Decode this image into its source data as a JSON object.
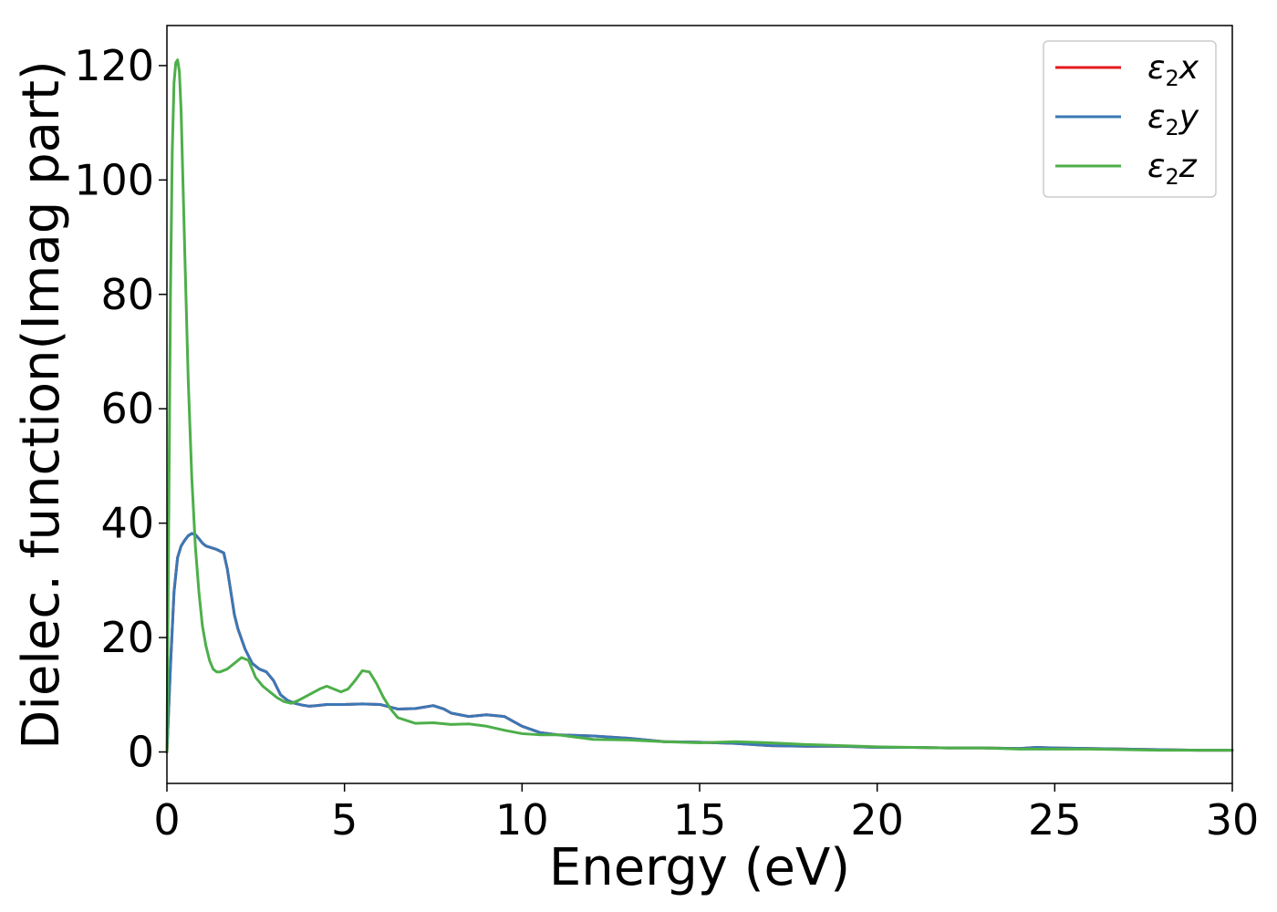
{
  "chart_data": {
    "type": "line",
    "xlabel": "Energy (eV)",
    "ylabel": "Dielec. function(Imag part)",
    "xlim": [
      0,
      30
    ],
    "ylim": [
      -5.5,
      127
    ],
    "xticks": [
      0,
      5,
      10,
      15,
      20,
      25,
      30
    ],
    "yticks": [
      0,
      20,
      40,
      60,
      80,
      100,
      120
    ],
    "grid": false,
    "legend_position": "top-right",
    "series": [
      {
        "name": "ε2x",
        "legend_base": "ε",
        "legend_sub": "2",
        "legend_suffix": "x",
        "color": "#e41a1c",
        "x": [
          0,
          0.1,
          0.2,
          0.3,
          0.4,
          0.5,
          0.6,
          0.7,
          0.8,
          0.9,
          1.0,
          1.1,
          1.2,
          1.4,
          1.6,
          1.7,
          1.8,
          1.9,
          2.0,
          2.2,
          2.4,
          2.6,
          2.8,
          3.0,
          3.2,
          3.4,
          3.6,
          3.8,
          4.0,
          4.2,
          4.5,
          5.0,
          5.5,
          6.0,
          6.5,
          7.0,
          7.2,
          7.5,
          7.8,
          8.0,
          8.5,
          9.0,
          9.5,
          10.0,
          10.5,
          11.0,
          12.0,
          13.0,
          14.0,
          15.0,
          16.0,
          17.0,
          18.0,
          19.0,
          20.0,
          21.0,
          22.0,
          23.0,
          24.0,
          24.5,
          25.0,
          26.0,
          27.0,
          28.0,
          29.0,
          30.0
        ],
        "y": [
          0,
          15,
          28,
          34,
          36,
          37,
          37.8,
          38.2,
          38,
          37.3,
          36.5,
          36,
          35.8,
          35.4,
          34.8,
          32,
          28,
          24,
          21.5,
          18,
          15.5,
          14.5,
          14,
          12.5,
          10,
          9,
          8.5,
          8.2,
          8,
          8.1,
          8.3,
          8.3,
          8.4,
          8.3,
          7.5,
          7.6,
          7.8,
          8.1,
          7.5,
          6.8,
          6.2,
          6.5,
          6.2,
          4.5,
          3.4,
          3,
          2.8,
          2.4,
          1.8,
          1.7,
          1.5,
          1.1,
          1.0,
          1.0,
          0.8,
          0.8,
          0.7,
          0.7,
          0.6,
          0.8,
          0.7,
          0.6,
          0.5,
          0.4,
          0.3,
          0.3
        ]
      },
      {
        "name": "ε2y",
        "legend_base": "ε",
        "legend_sub": "2",
        "legend_suffix": "y",
        "color": "#3a78b5",
        "x": [
          0,
          0.1,
          0.2,
          0.3,
          0.4,
          0.5,
          0.6,
          0.7,
          0.8,
          0.9,
          1.0,
          1.1,
          1.2,
          1.4,
          1.6,
          1.7,
          1.8,
          1.9,
          2.0,
          2.2,
          2.4,
          2.6,
          2.8,
          3.0,
          3.2,
          3.4,
          3.6,
          3.8,
          4.0,
          4.2,
          4.5,
          5.0,
          5.5,
          6.0,
          6.5,
          7.0,
          7.2,
          7.5,
          7.8,
          8.0,
          8.5,
          9.0,
          9.5,
          10.0,
          10.5,
          11.0,
          12.0,
          13.0,
          14.0,
          15.0,
          16.0,
          17.0,
          18.0,
          19.0,
          20.0,
          21.0,
          22.0,
          23.0,
          24.0,
          24.5,
          25.0,
          26.0,
          27.0,
          28.0,
          29.0,
          30.0
        ],
        "y": [
          0,
          15,
          28,
          34,
          36,
          37,
          37.8,
          38.2,
          38,
          37.3,
          36.5,
          36,
          35.8,
          35.4,
          34.8,
          32,
          28,
          24,
          21.5,
          18,
          15.5,
          14.5,
          14,
          12.5,
          10,
          9,
          8.5,
          8.2,
          8,
          8.1,
          8.3,
          8.3,
          8.4,
          8.3,
          7.5,
          7.6,
          7.8,
          8.1,
          7.5,
          6.8,
          6.2,
          6.5,
          6.2,
          4.5,
          3.4,
          3,
          2.8,
          2.4,
          1.8,
          1.7,
          1.5,
          1.1,
          1.0,
          1.0,
          0.8,
          0.8,
          0.7,
          0.7,
          0.6,
          0.8,
          0.7,
          0.6,
          0.5,
          0.4,
          0.3,
          0.3
        ]
      },
      {
        "name": "ε2z",
        "legend_base": "ε",
        "legend_sub": "2",
        "legend_suffix": "z",
        "color": "#4daf4a",
        "x": [
          0,
          0.05,
          0.1,
          0.15,
          0.2,
          0.25,
          0.3,
          0.35,
          0.4,
          0.45,
          0.5,
          0.6,
          0.7,
          0.8,
          0.9,
          1.0,
          1.1,
          1.2,
          1.3,
          1.4,
          1.5,
          1.7,
          1.9,
          2.1,
          2.3,
          2.5,
          2.7,
          2.9,
          3.1,
          3.3,
          3.5,
          3.7,
          4.0,
          4.3,
          4.5,
          4.7,
          4.9,
          5.1,
          5.3,
          5.5,
          5.7,
          5.9,
          6.1,
          6.3,
          6.5,
          7.0,
          7.5,
          8.0,
          8.5,
          9.0,
          9.5,
          10.0,
          10.5,
          11.0,
          11.5,
          12.0,
          13.0,
          14.0,
          15.0,
          16.0,
          17.0,
          18.0,
          19.0,
          20.0,
          21.0,
          22.0,
          23.0,
          24.0,
          25.0,
          26.0,
          27.0,
          28.0,
          29.0,
          30.0
        ],
        "y": [
          0,
          40,
          80,
          105,
          117,
          120.5,
          121,
          119,
          112,
          100,
          88,
          65,
          48,
          36,
          28,
          22,
          18.5,
          16,
          14.5,
          14,
          14,
          14.5,
          15.5,
          16.5,
          16,
          13,
          11.5,
          10.5,
          9.5,
          8.8,
          8.5,
          9,
          10,
          11,
          11.5,
          11,
          10.5,
          11,
          12.5,
          14.2,
          14,
          12,
          9.5,
          7.5,
          6,
          5,
          5.1,
          4.8,
          4.9,
          4.5,
          3.8,
          3.2,
          3,
          3,
          2.6,
          2.2,
          2.1,
          1.8,
          1.6,
          1.8,
          1.6,
          1.3,
          1.1,
          0.9,
          0.8,
          0.7,
          0.7,
          0.5,
          0.5,
          0.5,
          0.4,
          0.3,
          0.3,
          0.3
        ]
      }
    ]
  }
}
